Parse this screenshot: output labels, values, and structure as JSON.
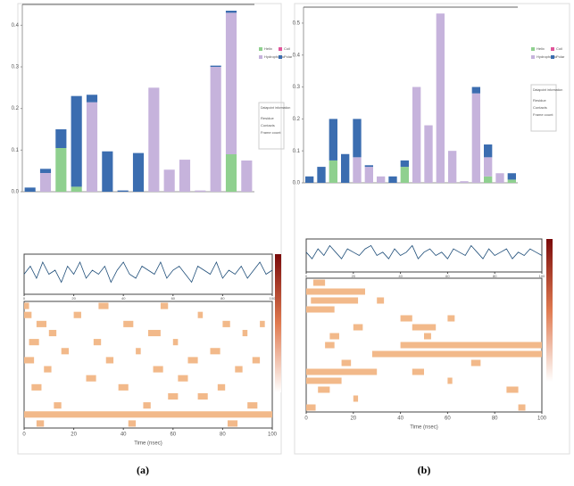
{
  "panel_labels": [
    "(a)",
    "(b)"
  ],
  "chart_data": [
    {
      "type": "bar",
      "categories": [
        null,
        null,
        null,
        null,
        null,
        null,
        null,
        null,
        null,
        null,
        null,
        null,
        null,
        null,
        null
      ],
      "series": [
        {
          "name": "Helix",
          "color": "#8fd08f",
          "values": [
            0,
            0,
            0.105,
            0.012,
            0,
            0,
            0,
            0,
            0,
            0,
            0,
            0,
            0,
            0.09,
            0
          ]
        },
        {
          "name": "Coil",
          "color": "#e0559a",
          "values": [
            0,
            0,
            0,
            0,
            0,
            0,
            0,
            0,
            0,
            0,
            0,
            0,
            0,
            0,
            0
          ]
        },
        {
          "name": "Hydrophobic",
          "color": "#c6b3dc",
          "values": [
            0,
            0.045,
            0,
            0,
            0.215,
            0,
            0,
            0,
            0.25,
            0.053,
            0.077,
            0.003,
            0.3,
            0.34,
            0.075
          ]
        },
        {
          "name": "Polar",
          "color": "#3b6db0",
          "values": [
            0.01,
            0.01,
            0.045,
            0.218,
            0.018,
            0.097,
            0.003,
            0.093,
            0,
            0,
            0,
            0,
            0.003,
            0.005,
            0
          ]
        }
      ],
      "ylim": [
        0,
        0.45
      ],
      "yticks": [
        {
          "value": 0,
          "label": "0.0"
        },
        0.1,
        0.2,
        0.3,
        0.4
      ],
      "info_title": "Datapoint information",
      "info_lines": [
        "Residue",
        "Contacts",
        "Frame count"
      ]
    },
    {
      "type": "bar",
      "categories": [
        null,
        null,
        null,
        null,
        null,
        null,
        null,
        null,
        null,
        null,
        null,
        null,
        null,
        null,
        null,
        null,
        null,
        null
      ],
      "series": [
        {
          "name": "Helix",
          "color": "#8fd08f",
          "values": [
            0,
            0,
            0.07,
            0,
            0,
            0,
            0,
            0,
            0.05,
            0,
            0,
            0,
            0,
            0,
            0,
            0.02,
            0,
            0.01
          ]
        },
        {
          "name": "Coil",
          "color": "#e0559a",
          "values": [
            0,
            0,
            0,
            0,
            0,
            0,
            0,
            0,
            0,
            0,
            0,
            0,
            0,
            0,
            0,
            0,
            0,
            0
          ]
        },
        {
          "name": "Hydrophobic",
          "color": "#c6b3dc",
          "values": [
            0,
            0,
            0,
            0,
            0.08,
            0.05,
            0.02,
            0,
            0,
            0.3,
            0.18,
            0.53,
            0.1,
            0.005,
            0.28,
            0.06,
            0.03,
            0
          ]
        },
        {
          "name": "Polar",
          "color": "#3b6db0",
          "values": [
            0.02,
            0.05,
            0.13,
            0.09,
            0.12,
            0.005,
            0,
            0.02,
            0.02,
            0,
            0,
            0,
            0,
            0,
            0.02,
            0.04,
            0,
            0.02
          ]
        }
      ],
      "ylim": [
        0,
        0.55
      ],
      "yticks": [
        {
          "value": 0,
          "label": "0.0"
        },
        0.1,
        0.2,
        0.3,
        0.4,
        0.5
      ],
      "info_title": "Datapoint information",
      "info_lines": [
        "Residue",
        "Contacts",
        "Frame count"
      ]
    },
    {
      "type": "timeline",
      "xlabel": "Time (nsec)",
      "xlim": [
        0,
        100
      ],
      "xticks": [
        0,
        20,
        40,
        60,
        80,
        100
      ],
      "ylim": [
        0,
        10
      ],
      "x": [
        0,
        2.5,
        5,
        7.5,
        10,
        12.5,
        15,
        17.5,
        20,
        22.5,
        25,
        27.5,
        30,
        32.5,
        35,
        37.5,
        40,
        42.5,
        45,
        47.5,
        50,
        52.5,
        55,
        57.5,
        60,
        62.5,
        65,
        67.5,
        70,
        72.5,
        75,
        77.5,
        80,
        82.5,
        85,
        87.5,
        90,
        92.5,
        95,
        97.5,
        100
      ],
      "values": [
        5,
        7,
        4,
        8,
        5,
        6,
        3,
        7,
        5,
        8,
        4,
        6,
        5,
        7,
        3,
        6,
        8,
        5,
        4,
        7,
        6,
        5,
        8,
        4,
        6,
        7,
        5,
        3,
        7,
        6,
        5,
        8,
        4,
        6,
        5,
        7,
        4,
        6,
        8,
        5,
        6
      ],
      "rows": [
        [
          [
            0,
            2
          ],
          [
            30,
            34
          ],
          [
            55,
            58
          ]
        ],
        [
          [
            0,
            3
          ],
          [
            20,
            23
          ],
          [
            70,
            72
          ]
        ],
        [
          [
            5,
            9
          ],
          [
            40,
            44
          ],
          [
            80,
            83
          ],
          [
            95,
            97
          ]
        ],
        [
          [
            10,
            13
          ],
          [
            50,
            55
          ],
          [
            88,
            90
          ]
        ],
        [
          [
            2,
            6
          ],
          [
            28,
            31
          ],
          [
            60,
            62
          ]
        ],
        [
          [
            15,
            18
          ],
          [
            45,
            47
          ],
          [
            75,
            79
          ]
        ],
        [
          [
            0,
            4
          ],
          [
            33,
            36
          ],
          [
            66,
            70
          ],
          [
            92,
            95
          ]
        ],
        [
          [
            8,
            11
          ],
          [
            52,
            56
          ],
          [
            85,
            88
          ]
        ],
        [
          [
            25,
            29
          ],
          [
            62,
            66
          ]
        ],
        [
          [
            3,
            7
          ],
          [
            38,
            42
          ],
          [
            78,
            81
          ]
        ],
        [
          [
            58,
            62
          ],
          [
            70,
            74
          ]
        ],
        [
          [
            12,
            15
          ],
          [
            48,
            51
          ],
          [
            90,
            94
          ]
        ],
        [
          [
            0,
            100
          ]
        ],
        [
          [
            5,
            8
          ],
          [
            42,
            45
          ],
          [
            82,
            86
          ]
        ]
      ]
    },
    {
      "type": "timeline",
      "xlabel": "Time (nsec)",
      "xlim": [
        0,
        100
      ],
      "xticks": [
        0,
        20,
        40,
        60,
        80,
        100
      ],
      "ylim": [
        0,
        10
      ],
      "x": [
        0,
        2.5,
        5,
        7.5,
        10,
        12.5,
        15,
        17.5,
        20,
        22.5,
        25,
        27.5,
        30,
        32.5,
        35,
        37.5,
        40,
        42.5,
        45,
        47.5,
        50,
        52.5,
        55,
        57.5,
        60,
        62.5,
        65,
        67.5,
        70,
        72.5,
        75,
        77.5,
        80,
        82.5,
        85,
        87.5,
        90,
        92.5,
        95,
        97.5,
        100
      ],
      "values": [
        6,
        4,
        7,
        5,
        8,
        6,
        4,
        7,
        6,
        5,
        7,
        8,
        5,
        6,
        4,
        7,
        5,
        6,
        8,
        4,
        6,
        7,
        5,
        6,
        4,
        7,
        6,
        5,
        8,
        6,
        4,
        7,
        5,
        6,
        7,
        4,
        6,
        5,
        7,
        6,
        5
      ],
      "rows": [
        [
          [
            3,
            8
          ]
        ],
        [
          [
            0,
            25
          ]
        ],
        [
          [
            2,
            22
          ],
          [
            30,
            33
          ]
        ],
        [
          [
            0,
            12
          ]
        ],
        [
          [
            40,
            45
          ],
          [
            60,
            63
          ]
        ],
        [
          [
            20,
            24
          ],
          [
            45,
            55
          ]
        ],
        [
          [
            10,
            14
          ],
          [
            50,
            53
          ]
        ],
        [
          [
            8,
            12
          ],
          [
            40,
            100
          ]
        ],
        [
          [
            28,
            100
          ]
        ],
        [
          [
            15,
            19
          ],
          [
            70,
            74
          ]
        ],
        [
          [
            0,
            30
          ],
          [
            45,
            50
          ]
        ],
        [
          [
            0,
            15
          ],
          [
            60,
            62
          ]
        ],
        [
          [
            5,
            10
          ],
          [
            85,
            90
          ]
        ],
        [
          [
            20,
            22
          ]
        ],
        [
          [
            0,
            4
          ],
          [
            90,
            93
          ]
        ]
      ]
    }
  ]
}
